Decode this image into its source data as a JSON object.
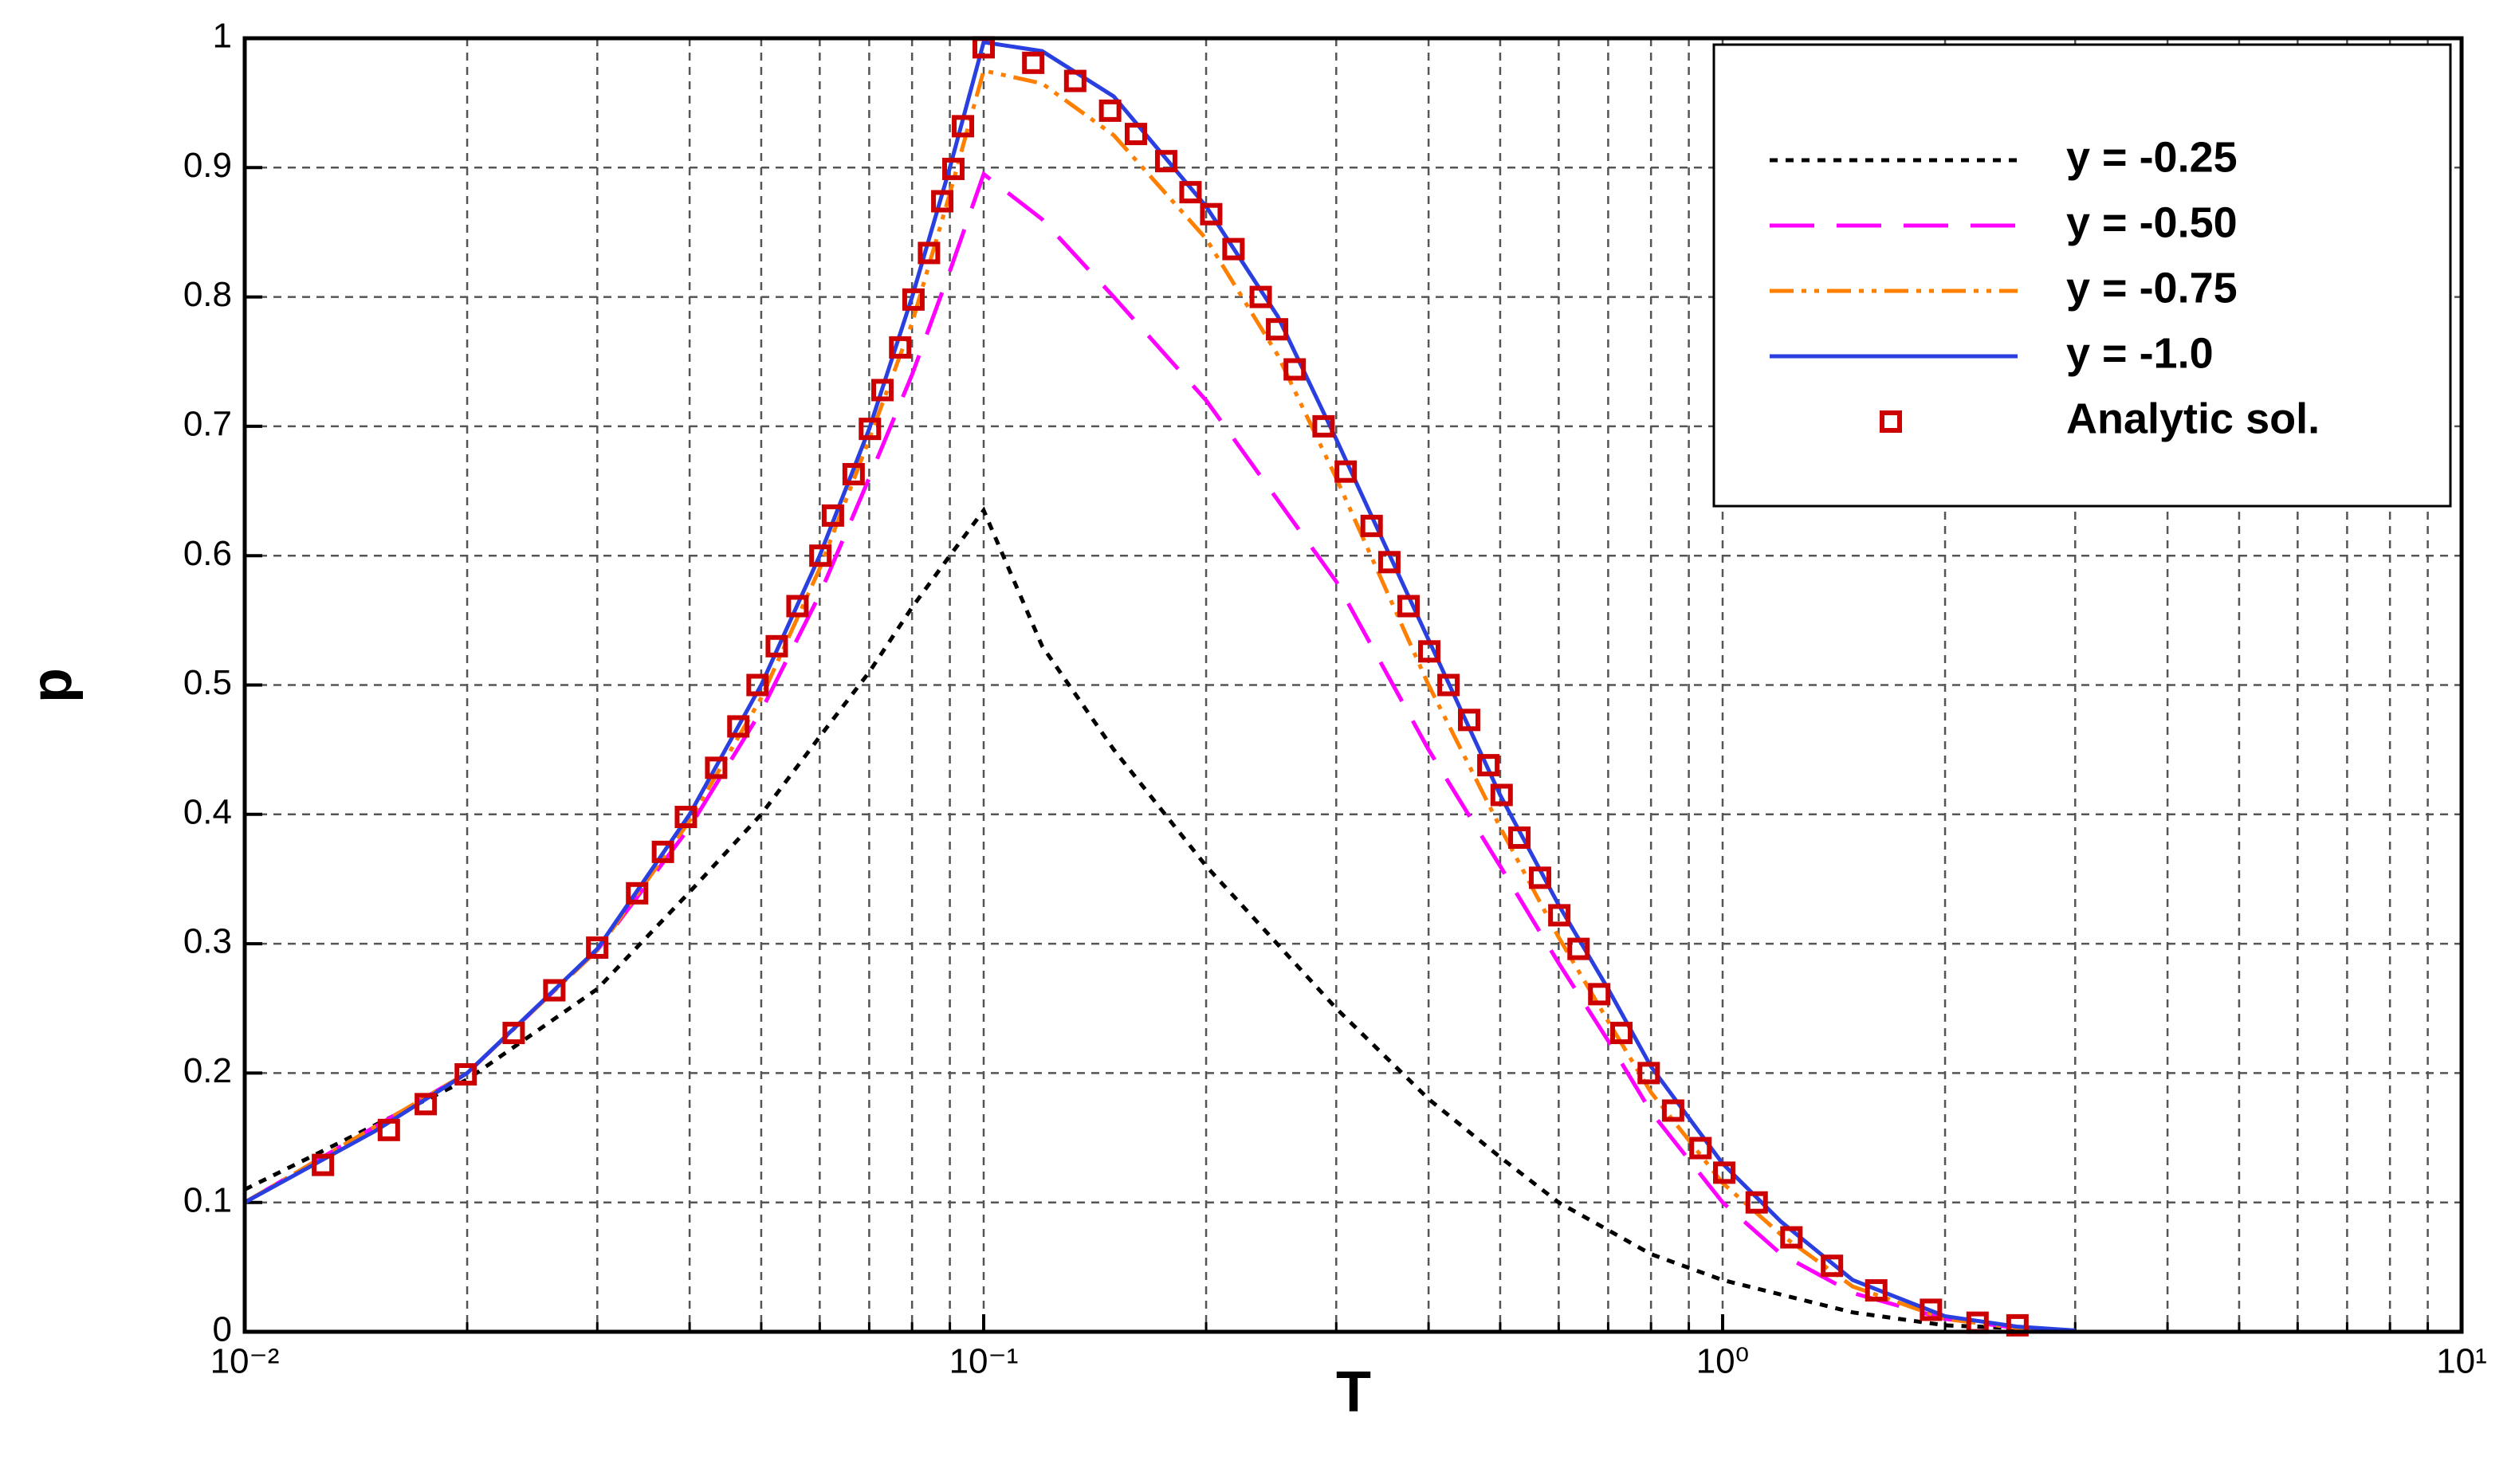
{
  "chart_data": {
    "type": "line",
    "xlabel": "T",
    "ylabel": "p",
    "xscale": "log",
    "xlim": [
      0.01,
      10
    ],
    "ylim": [
      0,
      1
    ],
    "xticks": [
      {
        "value": 0.01,
        "label": "10⁻²"
      },
      {
        "value": 0.1,
        "label": "10⁻¹"
      },
      {
        "value": 1,
        "label": "10⁰"
      },
      {
        "value": 10,
        "label": "10¹"
      }
    ],
    "xminorticks": [
      0.02,
      0.03,
      0.04,
      0.05,
      0.06,
      0.07,
      0.08,
      0.09,
      0.2,
      0.3,
      0.4,
      0.5,
      0.6,
      0.7,
      0.8,
      0.9,
      2,
      3,
      4,
      5,
      6,
      7,
      8,
      9
    ],
    "yticks": [
      0,
      0.1,
      0.2,
      0.3,
      0.4,
      0.5,
      0.6,
      0.7,
      0.8,
      0.9,
      1
    ],
    "grid": true,
    "legend": "upper right",
    "series": [
      {
        "name": "y = -0.25",
        "color": "#000000",
        "line_style": "dotted",
        "x": [
          0.01,
          0.02,
          0.03,
          0.04,
          0.05,
          0.06,
          0.07,
          0.08,
          0.09,
          0.1,
          0.11,
          0.12,
          0.15,
          0.2,
          0.3,
          0.4,
          0.5,
          0.6,
          0.8,
          1.0,
          1.5,
          2,
          3
        ],
        "values": [
          0.11,
          0.195,
          0.265,
          0.34,
          0.4,
          0.46,
          0.51,
          0.56,
          0.6,
          0.635,
          0.58,
          0.53,
          0.45,
          0.36,
          0.25,
          0.18,
          0.135,
          0.1,
          0.06,
          0.04,
          0.015,
          0.005,
          0.001
        ]
      },
      {
        "name": "y = -0.50",
        "color": "#ff00ff",
        "line_style": "dashed",
        "x": [
          0.01,
          0.02,
          0.03,
          0.04,
          0.05,
          0.06,
          0.07,
          0.08,
          0.09,
          0.1,
          0.12,
          0.15,
          0.2,
          0.3,
          0.4,
          0.5,
          0.6,
          0.7,
          0.8,
          1.0,
          1.2,
          1.5,
          2,
          2.5,
          3
        ],
        "values": [
          0.1,
          0.2,
          0.295,
          0.39,
          0.48,
          0.57,
          0.66,
          0.74,
          0.82,
          0.895,
          0.86,
          0.8,
          0.72,
          0.58,
          0.45,
          0.36,
          0.285,
          0.225,
          0.17,
          0.1,
          0.06,
          0.03,
          0.01,
          0.003,
          0.001
        ]
      },
      {
        "name": "y = -0.75",
        "color": "#ff7f00",
        "line_style": "dashdotdot",
        "x": [
          0.01,
          0.02,
          0.03,
          0.04,
          0.05,
          0.06,
          0.07,
          0.08,
          0.09,
          0.1,
          0.12,
          0.15,
          0.2,
          0.25,
          0.3,
          0.4,
          0.5,
          0.6,
          0.7,
          0.8,
          1.0,
          1.2,
          1.5,
          2,
          2.5,
          3
        ],
        "values": [
          0.1,
          0.2,
          0.295,
          0.395,
          0.49,
          0.59,
          0.69,
          0.78,
          0.88,
          0.975,
          0.965,
          0.925,
          0.845,
          0.755,
          0.66,
          0.5,
          0.39,
          0.305,
          0.24,
          0.185,
          0.115,
          0.075,
          0.035,
          0.01,
          0.003,
          0.001
        ]
      },
      {
        "name": "y = -1.0",
        "color": "#2a3fe0",
        "line_style": "solid",
        "x": [
          0.01,
          0.015,
          0.02,
          0.03,
          0.04,
          0.05,
          0.06,
          0.07,
          0.08,
          0.09,
          0.1,
          0.12,
          0.15,
          0.2,
          0.25,
          0.3,
          0.4,
          0.5,
          0.6,
          0.7,
          0.8,
          1.0,
          1.2,
          1.5,
          2,
          2.5,
          3
        ],
        "values": [
          0.1,
          0.155,
          0.2,
          0.296,
          0.4,
          0.5,
          0.6,
          0.698,
          0.8,
          0.9,
          0.997,
          0.99,
          0.955,
          0.87,
          0.785,
          0.69,
          0.535,
          0.415,
          0.33,
          0.265,
          0.205,
          0.13,
          0.085,
          0.04,
          0.012,
          0.004,
          0.001
        ]
      },
      {
        "name": "Analytic sol.",
        "color": "#cc0000",
        "marker": "square",
        "x": [
          0.01276,
          0.01567,
          0.01758,
          0.01991,
          0.02312,
          0.02624,
          0.02999,
          0.03396,
          0.03681,
          0.03954,
          0.04345,
          0.04656,
          0.04943,
          0.05248,
          0.05598,
          0.06012,
          0.06252,
          0.06668,
          0.07015,
          0.07295,
          0.07709,
          0.08035,
          0.08433,
          0.0879,
          0.09099,
          0.09376,
          0.1,
          0.1167,
          0.133,
          0.1483,
          0.1607,
          0.1766,
          0.1905,
          0.2032,
          0.2178,
          0.2371,
          0.2495,
          0.2636,
          0.2884,
          0.309,
          0.335,
          0.354,
          0.3758,
          0.4009,
          0.4256,
          0.4539,
          0.4819,
          0.5023,
          0.5309,
          0.5662,
          0.6012,
          0.6383,
          0.6808,
          0.7295,
          0.7943,
          0.857,
          0.9333,
          1.005,
          1.112,
          1.239,
          1.406,
          1.614,
          1.914,
          2.213,
          2.506
        ],
        "values": [
          0.129,
          0.156,
          0.176,
          0.199,
          0.231,
          0.264,
          0.297,
          0.339,
          0.371,
          0.398,
          0.436,
          0.468,
          0.5,
          0.53,
          0.561,
          0.6,
          0.631,
          0.663,
          0.698,
          0.728,
          0.761,
          0.798,
          0.834,
          0.874,
          0.899,
          0.932,
          0.993,
          0.981,
          0.967,
          0.944,
          0.926,
          0.905,
          0.881,
          0.864,
          0.837,
          0.8,
          0.775,
          0.744,
          0.7,
          0.665,
          0.623,
          0.595,
          0.561,
          0.526,
          0.5,
          0.473,
          0.438,
          0.415,
          0.382,
          0.351,
          0.322,
          0.296,
          0.261,
          0.231,
          0.2,
          0.171,
          0.142,
          0.123,
          0.1,
          0.073,
          0.051,
          0.032,
          0.017,
          0.007,
          0.005
        ]
      }
    ]
  }
}
